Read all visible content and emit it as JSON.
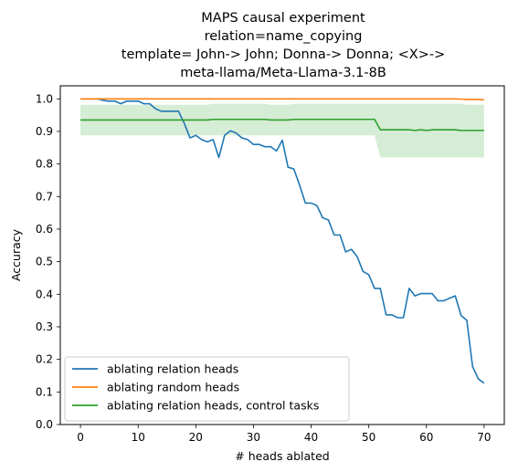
{
  "chart_data": {
    "type": "line",
    "title_lines": [
      "MAPS causal experiment",
      "relation=name_copying",
      "template= John-> John; Donna-> Donna; <X>->",
      "meta-llama/Meta-Llama-3.1-8B"
    ],
    "xlabel": "# heads ablated",
    "ylabel": "Accuracy",
    "xlim": [
      -3.5,
      73.5
    ],
    "ylim": [
      0,
      1.04
    ],
    "xticks": [
      0,
      10,
      20,
      30,
      40,
      50,
      60,
      70
    ],
    "yticks": [
      0.0,
      0.1,
      0.2,
      0.3,
      0.4,
      0.5,
      0.6,
      0.7,
      0.8,
      0.9,
      1.0
    ],
    "ytick_labels": [
      "0.0",
      "0.1",
      "0.2",
      "0.3",
      "0.4",
      "0.5",
      "0.6",
      "0.7",
      "0.8",
      "0.9",
      "1.0"
    ],
    "grid": false,
    "legend_position": "lower-left",
    "x": [
      0,
      1,
      2,
      3,
      4,
      5,
      6,
      7,
      8,
      9,
      10,
      11,
      12,
      13,
      14,
      15,
      16,
      17,
      18,
      19,
      20,
      21,
      22,
      23,
      24,
      25,
      26,
      27,
      28,
      29,
      30,
      31,
      32,
      33,
      34,
      35,
      36,
      37,
      38,
      39,
      40,
      41,
      42,
      43,
      44,
      45,
      46,
      47,
      48,
      49,
      50,
      51,
      52,
      53,
      54,
      55,
      56,
      57,
      58,
      59,
      60,
      61,
      62,
      63,
      64,
      65,
      66,
      67,
      68,
      69,
      70
    ],
    "series": [
      {
        "name": "ablating relation heads",
        "color": "#1f77b4",
        "values": [
          1.0,
          1.0,
          1.0,
          1.0,
          0.995,
          0.993,
          0.993,
          0.985,
          0.993,
          0.993,
          0.993,
          0.985,
          0.985,
          0.97,
          0.962,
          0.962,
          0.962,
          0.962,
          0.925,
          0.88,
          0.888,
          0.875,
          0.868,
          0.875,
          0.82,
          0.888,
          0.902,
          0.895,
          0.88,
          0.875,
          0.86,
          0.86,
          0.853,
          0.853,
          0.84,
          0.873,
          0.79,
          0.785,
          0.735,
          0.68,
          0.68,
          0.672,
          0.635,
          0.628,
          0.582,
          0.582,
          0.53,
          0.538,
          0.515,
          0.47,
          0.46,
          0.418,
          0.418,
          0.337,
          0.337,
          0.328,
          0.328,
          0.418,
          0.395,
          0.402,
          0.402,
          0.402,
          0.38,
          0.38,
          0.388,
          0.395,
          0.335,
          0.32,
          0.178,
          0.14,
          0.127
        ]
      },
      {
        "name": "ablating random heads",
        "color": "#ff7f0e",
        "values": [
          1.0,
          1.0,
          1.0,
          1.0,
          1.0,
          1.0,
          1.0,
          1.0,
          1.0,
          1.0,
          1.0,
          1.0,
          1.0,
          1.0,
          1.0,
          1.0,
          1.0,
          1.0,
          1.0,
          1.0,
          1.0,
          1.0,
          1.0,
          1.0,
          1.0,
          1.0,
          1.0,
          1.0,
          1.0,
          1.0,
          1.0,
          1.0,
          1.0,
          1.0,
          1.0,
          1.0,
          1.0,
          1.0,
          1.0,
          1.0,
          1.0,
          1.0,
          1.0,
          1.0,
          1.0,
          1.0,
          1.0,
          1.0,
          1.0,
          1.0,
          1.0,
          1.0,
          1.0,
          1.0,
          1.0,
          1.0,
          1.0,
          1.0,
          1.0,
          1.0,
          1.0,
          1.0,
          1.0,
          1.0,
          1.0,
          1.0,
          0.999,
          0.998,
          0.998,
          0.998,
          0.997
        ]
      },
      {
        "name": "ablating relation heads, control tasks",
        "color": "#2ca02c",
        "values": [
          0.935,
          0.935,
          0.935,
          0.935,
          0.935,
          0.935,
          0.935,
          0.935,
          0.935,
          0.935,
          0.935,
          0.935,
          0.935,
          0.935,
          0.935,
          0.935,
          0.935,
          0.935,
          0.935,
          0.935,
          0.935,
          0.935,
          0.935,
          0.937,
          0.937,
          0.937,
          0.937,
          0.937,
          0.937,
          0.937,
          0.937,
          0.937,
          0.937,
          0.935,
          0.935,
          0.935,
          0.935,
          0.937,
          0.937,
          0.937,
          0.937,
          0.937,
          0.937,
          0.937,
          0.937,
          0.937,
          0.937,
          0.937,
          0.937,
          0.937,
          0.937,
          0.937,
          0.905,
          0.905,
          0.905,
          0.905,
          0.905,
          0.905,
          0.903,
          0.905,
          0.903,
          0.905,
          0.905,
          0.905,
          0.905,
          0.905,
          0.903,
          0.903,
          0.903,
          0.903,
          0.903
        ],
        "band_lower": [
          0.888,
          0.888,
          0.888,
          0.888,
          0.888,
          0.888,
          0.888,
          0.888,
          0.888,
          0.888,
          0.888,
          0.888,
          0.888,
          0.888,
          0.888,
          0.888,
          0.888,
          0.888,
          0.888,
          0.888,
          0.888,
          0.888,
          0.888,
          0.888,
          0.888,
          0.888,
          0.888,
          0.888,
          0.888,
          0.888,
          0.888,
          0.888,
          0.888,
          0.888,
          0.888,
          0.888,
          0.888,
          0.888,
          0.888,
          0.888,
          0.888,
          0.888,
          0.888,
          0.888,
          0.888,
          0.888,
          0.888,
          0.888,
          0.888,
          0.888,
          0.888,
          0.888,
          0.82,
          0.82,
          0.82,
          0.82,
          0.82,
          0.82,
          0.82,
          0.82,
          0.82,
          0.82,
          0.82,
          0.82,
          0.82,
          0.82,
          0.82,
          0.82,
          0.82,
          0.82,
          0.82
        ],
        "band_upper": [
          0.982,
          0.982,
          0.982,
          0.982,
          0.982,
          0.982,
          0.982,
          0.982,
          0.982,
          0.982,
          0.982,
          0.982,
          0.982,
          0.982,
          0.982,
          0.982,
          0.982,
          0.982,
          0.982,
          0.982,
          0.982,
          0.982,
          0.982,
          0.985,
          0.985,
          0.985,
          0.985,
          0.985,
          0.985,
          0.985,
          0.985,
          0.985,
          0.985,
          0.982,
          0.982,
          0.982,
          0.982,
          0.985,
          0.985,
          0.985,
          0.985,
          0.985,
          0.985,
          0.985,
          0.985,
          0.985,
          0.985,
          0.985,
          0.985,
          0.985,
          0.985,
          0.985,
          0.985,
          0.985,
          0.985,
          0.985,
          0.985,
          0.985,
          0.985,
          0.985,
          0.985,
          0.985,
          0.985,
          0.985,
          0.985,
          0.985,
          0.985,
          0.982,
          0.982,
          0.982,
          0.982
        ]
      }
    ]
  }
}
